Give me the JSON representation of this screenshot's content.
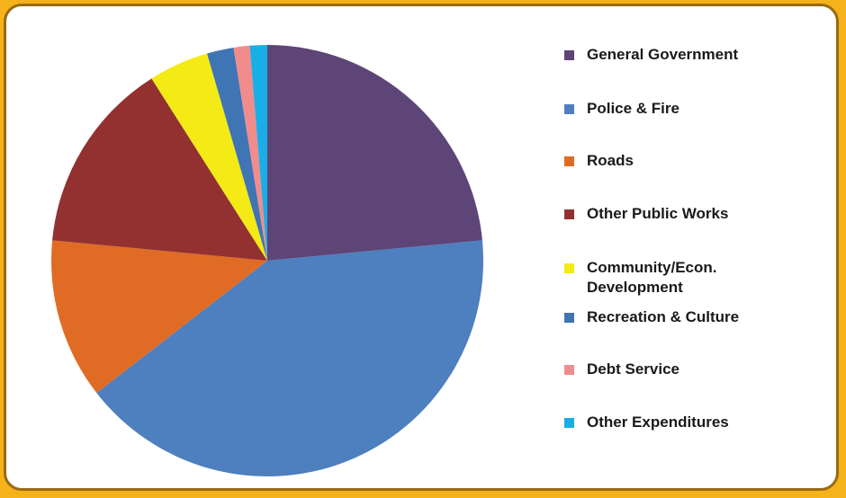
{
  "chart_data": {
    "type": "pie",
    "title": "",
    "legend_position": "right",
    "slices": [
      {
        "label": "General Government",
        "value": 23.5,
        "color": "#5e4577"
      },
      {
        "label": "Police & Fire",
        "value": 41.0,
        "color": "#4e7fbe"
      },
      {
        "label": "Roads",
        "value": 12.0,
        "color": "#e06b24"
      },
      {
        "label": "Other Public Works",
        "value": 14.5,
        "color": "#933131"
      },
      {
        "label": "Community/Econ. Development",
        "value": 4.5,
        "color": "#f3ea16"
      },
      {
        "label": "Recreation & Culture",
        "value": 2.0,
        "color": "#3f74b5"
      },
      {
        "label": "Debt Service",
        "value": 1.2,
        "color": "#f08c8c"
      },
      {
        "label": "Other Expenditures",
        "value": 1.3,
        "color": "#1aaee8"
      }
    ]
  },
  "legend": {
    "items": [
      {
        "label": "General Government",
        "color": "#5e4577"
      },
      {
        "label": "Police & Fire",
        "color": "#4e7fbe"
      },
      {
        "label": "Roads",
        "color": "#e06b24"
      },
      {
        "label": "Other Public Works",
        "color": "#933131"
      },
      {
        "label": "Community/Econ. Development",
        "color": "#f3ea16"
      },
      {
        "label": "Recreation & Culture",
        "color": "#3f74b5"
      },
      {
        "label": "Debt Service",
        "color": "#f08c8c"
      },
      {
        "label": "Other Expenditures",
        "color": "#1aaee8"
      }
    ]
  }
}
